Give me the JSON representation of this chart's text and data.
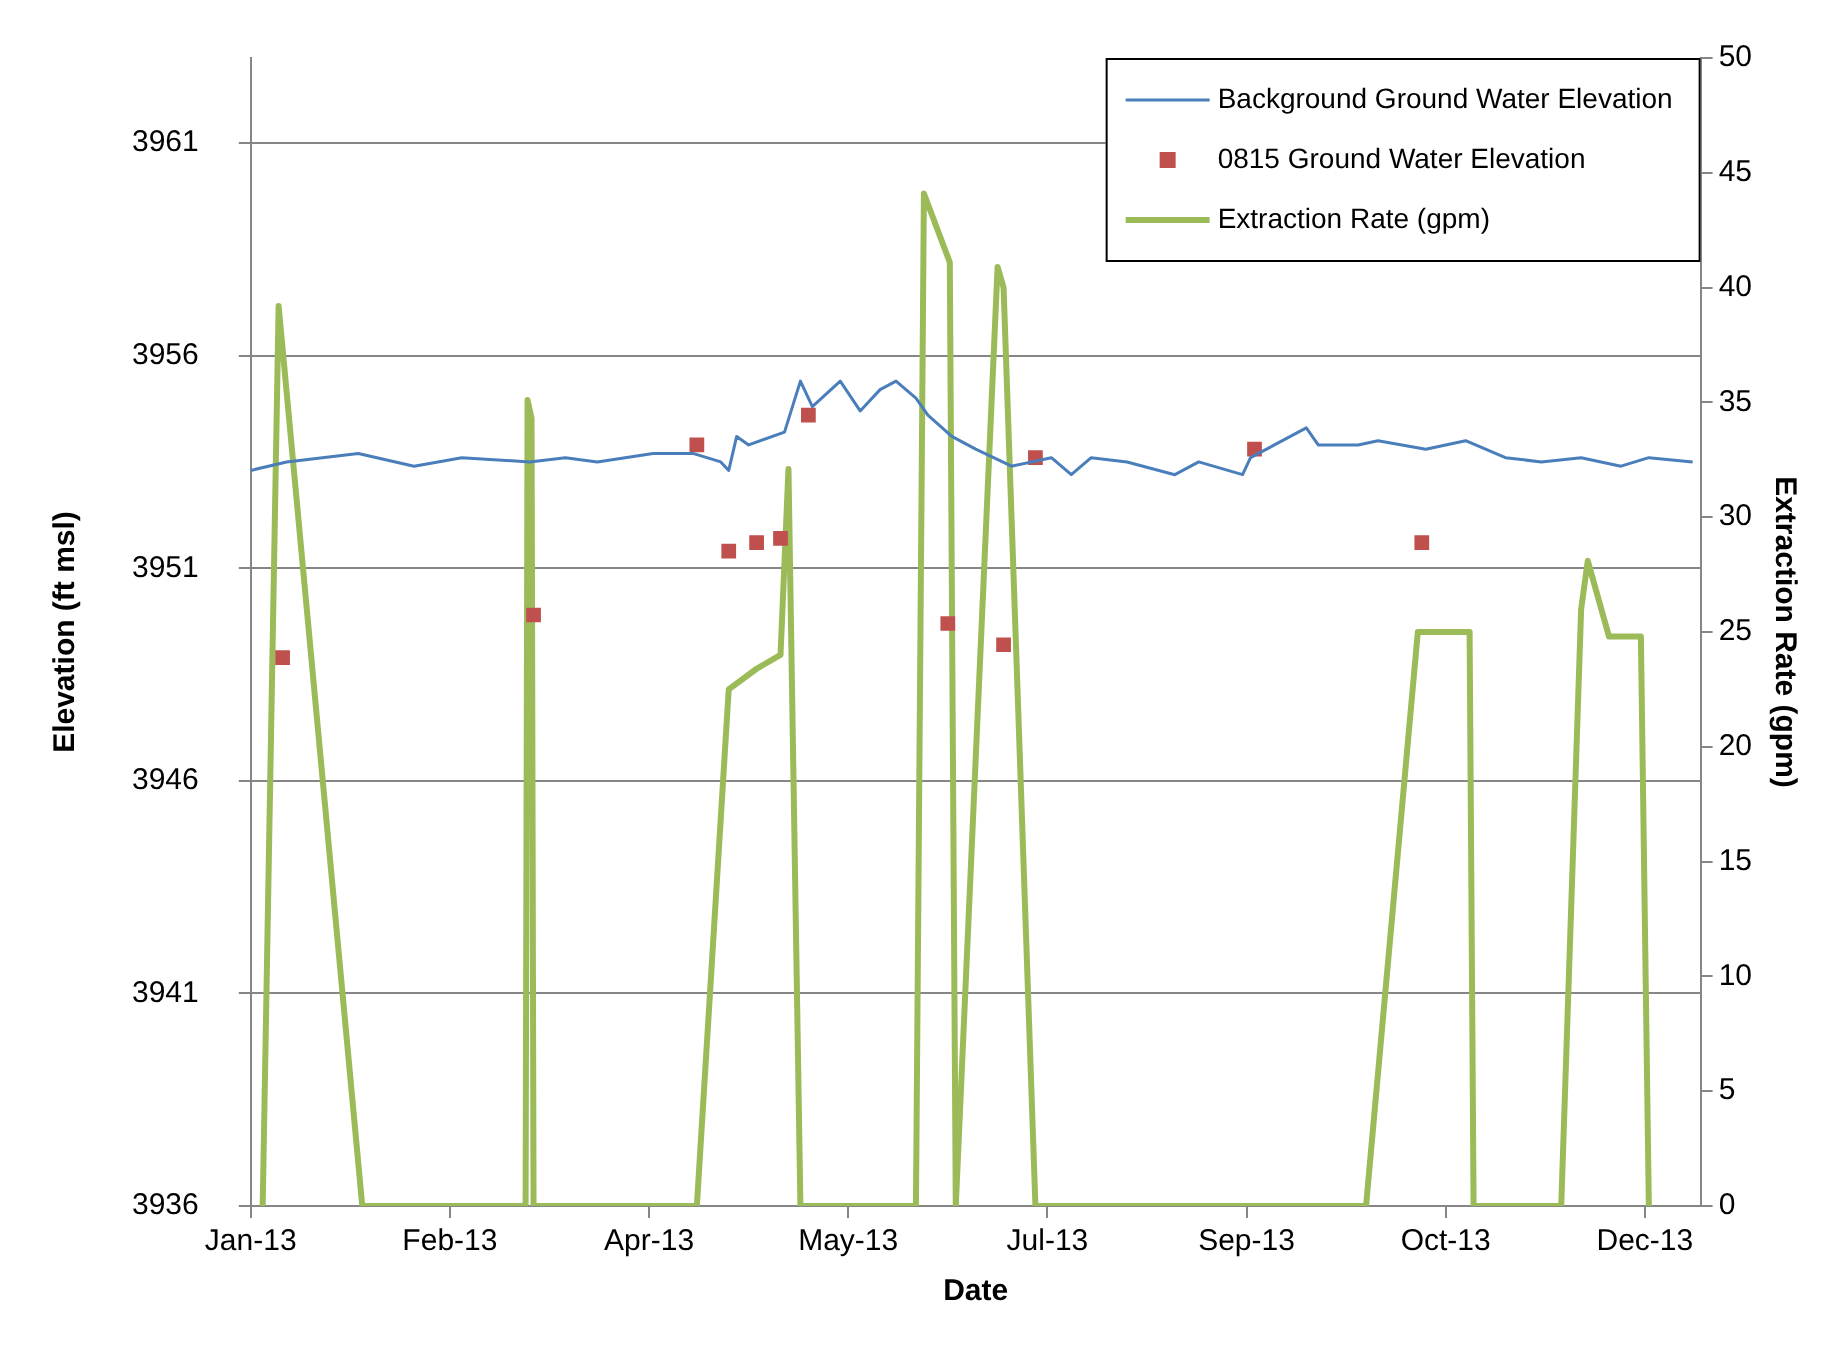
{
  "chart_data": {
    "type": "line",
    "xlabel": "Date",
    "ylabel": "Elevation (ft msl)",
    "y2label": "Extraction Rate (gpm)",
    "xlim": [
      "2013-01-01",
      "2013-12-31"
    ],
    "xticks": [
      {
        "value": "2013-01-01",
        "label": "Jan-13"
      },
      {
        "value": "2013-02-20",
        "label": "Feb-13"
      },
      {
        "value": "2013-04-11",
        "label": "Apr-13"
      },
      {
        "value": "2013-05-31",
        "label": "May-13"
      },
      {
        "value": "2013-07-20",
        "label": "Jul-13"
      },
      {
        "value": "2013-09-08",
        "label": "Sep-13"
      },
      {
        "value": "2013-10-28",
        "label": "Oct-13"
      },
      {
        "value": "2013-12-17",
        "label": "Dec-13"
      }
    ],
    "ylim": [
      3936,
      3963
    ],
    "yticks": [
      3936,
      3941,
      3946,
      3951,
      3956,
      3961
    ],
    "y2lim": [
      0,
      50
    ],
    "y2ticks": [
      0,
      5,
      10,
      15,
      20,
      25,
      30,
      35,
      40,
      45,
      50
    ],
    "grid": "y",
    "legend": "top right",
    "series": [
      {
        "name": "Background Ground Water Elevation",
        "type": "line",
        "marker": "none",
        "color": "#4a7ebb",
        "x": [
          "2013-01-01",
          "2013-01-10",
          "2013-01-28",
          "2013-02-11",
          "2013-02-23",
          "2013-03-12",
          "2013-03-21",
          "2013-03-29",
          "2013-04-12",
          "2013-04-22",
          "2013-04-29",
          "2013-05-01",
          "2013-05-03",
          "2013-05-06",
          "2013-05-15",
          "2013-05-19",
          "2013-05-22",
          "2013-05-29",
          "2013-06-03",
          "2013-06-08",
          "2013-06-12",
          "2013-06-17",
          "2013-06-20",
          "2013-06-26",
          "2013-07-02",
          "2013-07-11",
          "2013-07-21",
          "2013-07-26",
          "2013-07-31",
          "2013-08-09",
          "2013-08-21",
          "2013-08-27",
          "2013-09-07",
          "2013-09-09",
          "2013-09-15",
          "2013-09-23",
          "2013-09-26",
          "2013-10-06",
          "2013-10-11",
          "2013-10-23",
          "2013-11-02",
          "2013-11-12",
          "2013-11-21",
          "2013-12-01",
          "2013-12-11",
          "2013-12-18",
          "2013-12-29"
        ],
        "values": [
          3953.3,
          3953.5,
          3953.7,
          3953.4,
          3953.6,
          3953.5,
          3953.6,
          3953.5,
          3953.7,
          3953.7,
          3953.5,
          3953.3,
          3954.1,
          3953.9,
          3954.2,
          3955.4,
          3954.8,
          3955.4,
          3954.7,
          3955.2,
          3955.4,
          3955.0,
          3954.6,
          3954.1,
          3953.8,
          3953.4,
          3953.6,
          3953.2,
          3953.6,
          3953.5,
          3953.2,
          3953.5,
          3953.2,
          3953.6,
          3953.9,
          3954.3,
          3953.9,
          3953.9,
          3954.0,
          3953.8,
          3954.0,
          3953.6,
          3953.5,
          3953.6,
          3953.4,
          3953.6,
          3953.5
        ]
      },
      {
        "name": "0815 Ground Water Elevation",
        "type": "scatter",
        "marker": "square",
        "color": "#c0504d",
        "x": [
          "2013-01-09",
          "2013-03-13",
          "2013-04-23",
          "2013-05-01",
          "2013-05-08",
          "2013-05-14",
          "2013-05-21",
          "2013-06-25",
          "2013-07-09",
          "2013-07-17",
          "2013-09-10",
          "2013-10-22"
        ],
        "values": [
          3948.9,
          3949.9,
          3953.9,
          3951.4,
          3951.6,
          3951.7,
          3954.6,
          3949.7,
          3949.2,
          3953.6,
          3953.8,
          3951.6
        ]
      },
      {
        "name": "Extraction Rate (gpm)",
        "type": "line",
        "marker": "none",
        "axis": "y2",
        "color": "#9bbb59",
        "x": [
          "2013-01-04",
          "2013-01-08",
          "2013-01-29",
          "2013-03-11",
          "2013-03-11T12:00",
          "2013-03-12T12:00",
          "2013-03-13",
          "2013-04-23",
          "2013-05-01",
          "2013-05-08",
          "2013-05-14",
          "2013-05-16",
          "2013-05-19",
          "2013-06-17",
          "2013-06-19",
          "2013-06-25T12:00",
          "2013-06-27",
          "2013-07-07T12:00",
          "2013-07-09",
          "2013-07-17",
          "2013-10-08",
          "2013-10-21",
          "2013-11-03",
          "2013-11-04",
          "2013-11-26",
          "2013-12-01",
          "2013-12-02T16:00",
          "2013-12-08",
          "2013-12-16",
          "2013-12-18"
        ],
        "values": [
          0,
          39.2,
          0,
          0,
          35.1,
          34.3,
          0,
          0,
          22.5,
          23.4,
          24,
          32.1,
          0,
          0,
          44.1,
          41.1,
          0,
          40.9,
          40,
          0,
          0,
          25,
          25,
          0,
          0,
          26,
          28.1,
          24.8,
          24.8,
          0
        ]
      }
    ]
  }
}
